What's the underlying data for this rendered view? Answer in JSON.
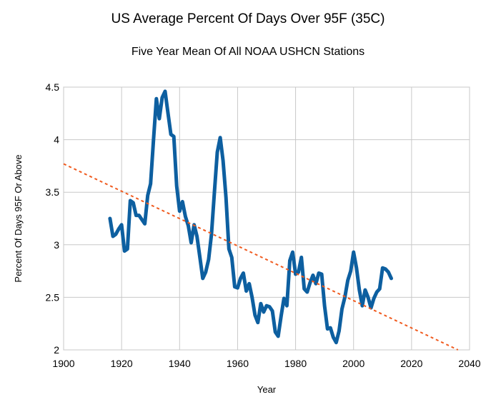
{
  "chart_data": {
    "type": "line",
    "title": "US Average Percent Of Days Over 95F (35C)",
    "subtitle": "Five Year Mean Of All NOAA USHCN Stations",
    "xlabel": "Year",
    "ylabel": "Percent Of Days 95F Or Above",
    "xlim": [
      1900,
      2040
    ],
    "ylim": [
      2,
      4.5
    ],
    "xticks": [
      "1900",
      "1920",
      "1940",
      "1960",
      "1980",
      "2000",
      "2020",
      "2040"
    ],
    "yticks": [
      "2",
      "2.5",
      "3",
      "3.5",
      "4",
      "4.5"
    ],
    "grid": true,
    "series": [
      {
        "color": "#0d5fa0",
        "x": [
          1916,
          1917,
          1918,
          1919,
          1920,
          1921,
          1922,
          1923,
          1924,
          1925,
          1926,
          1927,
          1928,
          1929,
          1930,
          1931,
          1932,
          1933,
          1934,
          1935,
          1936,
          1937,
          1938,
          1939,
          1940,
          1941,
          1942,
          1943,
          1944,
          1945,
          1946,
          1947,
          1948,
          1949,
          1950,
          1951,
          1952,
          1953,
          1954,
          1955,
          1956,
          1957,
          1958,
          1959,
          1960,
          1961,
          1962,
          1963,
          1964,
          1965,
          1966,
          1967,
          1968,
          1969,
          1970,
          1971,
          1972,
          1973,
          1974,
          1975,
          1976,
          1977,
          1978,
          1979,
          1980,
          1981,
          1982,
          1983,
          1984,
          1985,
          1986,
          1987,
          1988,
          1989,
          1990,
          1991,
          1992,
          1993,
          1994,
          1995,
          1996,
          1997,
          1998,
          1999,
          2000,
          2001,
          2002,
          2003,
          2004,
          2005,
          2006,
          2007,
          2008,
          2009,
          2010,
          2011,
          2012,
          2013
        ],
        "values": [
          3.25,
          3.08,
          3.1,
          3.15,
          3.19,
          2.94,
          2.96,
          3.42,
          3.4,
          3.28,
          3.28,
          3.24,
          3.2,
          3.47,
          3.58,
          4.0,
          4.39,
          4.2,
          4.4,
          4.46,
          4.25,
          4.05,
          4.03,
          3.56,
          3.32,
          3.41,
          3.27,
          3.18,
          3.02,
          3.19,
          3.08,
          2.88,
          2.68,
          2.74,
          2.86,
          3.1,
          3.5,
          3.88,
          4.02,
          3.8,
          3.45,
          2.96,
          2.88,
          2.6,
          2.59,
          2.68,
          2.73,
          2.56,
          2.63,
          2.5,
          2.33,
          2.26,
          2.44,
          2.36,
          2.42,
          2.41,
          2.37,
          2.17,
          2.13,
          2.32,
          2.49,
          2.42,
          2.85,
          2.93,
          2.72,
          2.74,
          2.88,
          2.58,
          2.55,
          2.64,
          2.71,
          2.63,
          2.73,
          2.72,
          2.42,
          2.2,
          2.21,
          2.12,
          2.07,
          2.18,
          2.39,
          2.5,
          2.66,
          2.75,
          2.93,
          2.78,
          2.57,
          2.42,
          2.57,
          2.5,
          2.4,
          2.49,
          2.55,
          2.58,
          2.78,
          2.77,
          2.74,
          2.68
        ]
      },
      {
        "color": "#f05a1e",
        "style": "dashed",
        "x": [
          1900,
          2036
        ],
        "values": [
          3.77,
          2.0
        ]
      }
    ]
  }
}
